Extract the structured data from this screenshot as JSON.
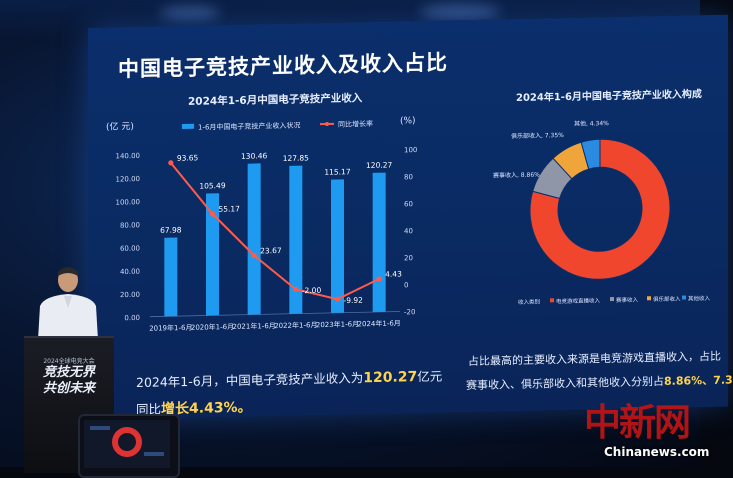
{
  "slide": {
    "title": "中国电子竞技产业收入及收入占比",
    "chart_title": "2024年1-6月中国电子竞技产业收入",
    "donut_title": "2024年1-6月中国电子竞技产业收入构成"
  },
  "chart_data": [
    {
      "type": "bar",
      "categories": [
        "2019年1-6月",
        "2020年1-6月",
        "2021年1-6月",
        "2022年1-6月",
        "2023年1-6月",
        "2024年1-6月"
      ],
      "series": [
        {
          "name": "1-6月中国电子竞技产业收入状况",
          "values": [
            67.98,
            105.49,
            130.46,
            127.85,
            115.17,
            120.27
          ]
        },
        {
          "name": "同比增长率",
          "values": [
            93.65,
            55.17,
            23.67,
            -2.0,
            -9.92,
            4.43
          ]
        }
      ],
      "y_left": {
        "label": "(亿 元)",
        "ticks": [
          "140.00",
          "120.00",
          "100.00",
          "80.00",
          "60.00",
          "40.00",
          "20.00",
          "0.00"
        ],
        "range": [
          0,
          140
        ]
      },
      "y_right": {
        "label": "(%)",
        "ticks": [
          "100",
          "80",
          "60",
          "40",
          "20",
          "0",
          "-20"
        ],
        "range": [
          -20,
          100
        ]
      },
      "data_labels_bar": [
        "67.98",
        "105.49",
        "130.46",
        "127.85",
        "115.17",
        "120.27"
      ],
      "data_labels_line": [
        "93.65",
        "55.17",
        "23.67",
        "-2.00",
        "-9.92",
        "4.43"
      ],
      "legend": {
        "placement": "top"
      },
      "colors": {
        "bar": "#1e9bf0",
        "line": "#ff5a4a"
      }
    },
    {
      "type": "pie",
      "slices": [
        {
          "name": "赛事收入",
          "label": "赛事收入, 8.86%",
          "value": 8.86,
          "color": "#8f96a8"
        },
        {
          "name": "俱乐部收入",
          "label": "俱乐部收入, 7.35%",
          "value": 7.35,
          "color": "#f0a53a"
        },
        {
          "name": "其他",
          "label": "其他, 4.34%",
          "value": 4.34,
          "color": "#2a8be0"
        },
        {
          "name": "电竞游戏直播收入",
          "value": 79.45,
          "color": "#f0462e"
        }
      ],
      "legend": [
        "收入类别",
        "电竞游戏直播收入",
        "赛事收入",
        "俱乐部收入",
        "其他收入"
      ]
    }
  ],
  "summary": {
    "line1_prefix": "2024年1-6月，中国电子竞技产业收入为",
    "line1_value": "120.27",
    "line1_suffix": "亿元",
    "line2_prefix": "同比",
    "line2_value": "增长4.43%。",
    "note1": "占比最高的主要收入来源是电竞游戏直播收入，占比",
    "note2_prefix": "赛事收入、俱乐部收入和其他收入分别占",
    "note2_value": "8.86%、7.3"
  },
  "podium": {
    "sub": "2024全球电竞大会",
    "line1": "竞技无界",
    "line2": "共创未来"
  },
  "watermark": {
    "logo": "中新网",
    "url": "Chinanews.com"
  },
  "colors": {
    "screen": "#0b2f6c",
    "accent": "#ffd34d",
    "watermark": "#c01515"
  }
}
